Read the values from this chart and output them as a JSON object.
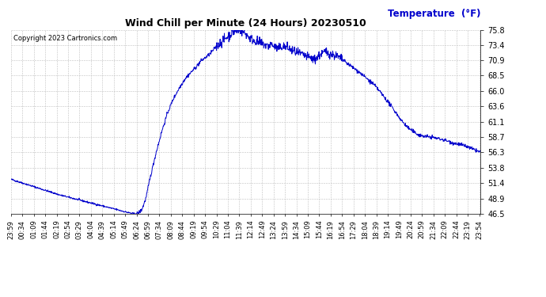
{
  "title": "Wind Chill per Minute (24 Hours) 20230510",
  "temp_label": "Temperature  (°F)",
  "temp_label_color": "#0000cc",
  "copyright_text": "Copyright 2023 Cartronics.com",
  "line_color": "#0000cc",
  "background_color": "#ffffff",
  "grid_color": "#c0c0c0",
  "ylim": [
    46.5,
    75.8
  ],
  "yticks": [
    46.5,
    48.9,
    51.4,
    53.8,
    56.3,
    58.7,
    61.1,
    63.6,
    66.0,
    68.5,
    70.9,
    73.4,
    75.8
  ],
  "xtick_labels": [
    "23:59",
    "00:34",
    "01:09",
    "01:44",
    "02:19",
    "02:54",
    "03:29",
    "04:04",
    "04:39",
    "05:14",
    "05:49",
    "06:24",
    "06:59",
    "07:34",
    "08:09",
    "08:44",
    "09:19",
    "09:54",
    "10:29",
    "11:04",
    "11:39",
    "12:14",
    "12:49",
    "13:24",
    "13:59",
    "14:34",
    "15:09",
    "15:44",
    "16:19",
    "16:54",
    "17:29",
    "18:04",
    "18:39",
    "19:14",
    "19:49",
    "20:24",
    "20:59",
    "21:34",
    "22:09",
    "22:44",
    "23:19",
    "23:54"
  ],
  "key_t": [
    0.0,
    0.5,
    1.0,
    1.5,
    2.0,
    2.5,
    3.0,
    3.5,
    4.0,
    4.5,
    5.0,
    5.5,
    6.0,
    6.3,
    6.5,
    6.7,
    6.9,
    7.1,
    7.4,
    7.7,
    8.0,
    8.3,
    8.6,
    8.9,
    9.2,
    9.5,
    9.7,
    10.0,
    10.2,
    10.4,
    10.6,
    10.8,
    11.0,
    11.2,
    11.4,
    11.55,
    11.7,
    11.9,
    12.1,
    12.3,
    12.6,
    12.9,
    13.1,
    13.3,
    13.5,
    13.7,
    13.9,
    14.1,
    14.3,
    14.5,
    14.7,
    14.9,
    15.1,
    15.3,
    15.5,
    15.7,
    15.9,
    16.1,
    16.3,
    16.5,
    16.7,
    17.0,
    17.3,
    17.6,
    17.9,
    18.2,
    18.5,
    18.8,
    19.1,
    19.4,
    19.7,
    20.0,
    20.3,
    20.6,
    20.9,
    21.2,
    21.5,
    21.8,
    22.1,
    22.4,
    22.7,
    23.0,
    23.3,
    23.6,
    24.0
  ],
  "key_v": [
    52.0,
    51.5,
    51.0,
    50.5,
    50.0,
    49.5,
    49.1,
    48.7,
    48.3,
    47.9,
    47.5,
    47.1,
    46.7,
    46.5,
    46.6,
    47.2,
    49.0,
    52.0,
    56.0,
    59.5,
    62.5,
    64.8,
    66.5,
    68.0,
    69.0,
    70.0,
    70.8,
    71.5,
    72.0,
    72.8,
    73.4,
    74.0,
    74.5,
    75.0,
    75.5,
    75.7,
    75.8,
    75.4,
    74.8,
    74.3,
    73.8,
    73.5,
    73.2,
    73.5,
    73.0,
    72.8,
    73.2,
    73.0,
    72.6,
    72.3,
    72.0,
    71.8,
    71.5,
    71.3,
    71.0,
    71.5,
    72.0,
    72.3,
    72.0,
    71.8,
    71.5,
    70.9,
    70.2,
    69.5,
    68.8,
    68.0,
    67.2,
    66.2,
    65.0,
    63.8,
    62.5,
    61.2,
    60.2,
    59.5,
    59.0,
    58.8,
    58.7,
    58.5,
    58.3,
    58.0,
    57.7,
    57.5,
    57.2,
    56.8,
    56.3
  ]
}
